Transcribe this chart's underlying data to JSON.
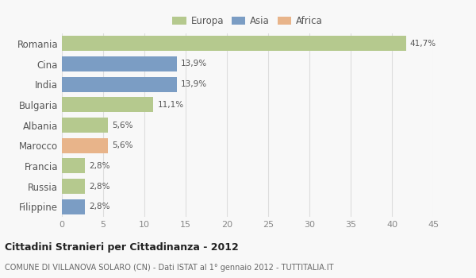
{
  "categories": [
    "Romania",
    "Cina",
    "India",
    "Bulgaria",
    "Albania",
    "Marocco",
    "Francia",
    "Russia",
    "Filippine"
  ],
  "values": [
    41.7,
    13.9,
    13.9,
    11.1,
    5.6,
    5.6,
    2.8,
    2.8,
    2.8
  ],
  "labels": [
    "41,7%",
    "13,9%",
    "13,9%",
    "11,1%",
    "5,6%",
    "5,6%",
    "2,8%",
    "2,8%",
    "2,8%"
  ],
  "bar_colors": [
    "#b5c98e",
    "#7b9dc4",
    "#7b9dc4",
    "#b5c98e",
    "#b5c98e",
    "#e8b48a",
    "#b5c98e",
    "#b5c98e",
    "#7b9dc4"
  ],
  "legend": [
    {
      "label": "Europa",
      "color": "#b5c98e"
    },
    {
      "label": "Asia",
      "color": "#7b9dc4"
    },
    {
      "label": "Africa",
      "color": "#e8b48a"
    }
  ],
  "xlim": [
    0,
    45
  ],
  "xticks": [
    0,
    5,
    10,
    15,
    20,
    25,
    30,
    35,
    40,
    45
  ],
  "title": "Cittadini Stranieri per Cittadinanza - 2012",
  "subtitle": "COMUNE DI VILLANOVA SOLARO (CN) - Dati ISTAT al 1° gennaio 2012 - TUTTITALIA.IT",
  "background_color": "#f8f8f8",
  "grid_color": "#dddddd",
  "bar_height": 0.75
}
